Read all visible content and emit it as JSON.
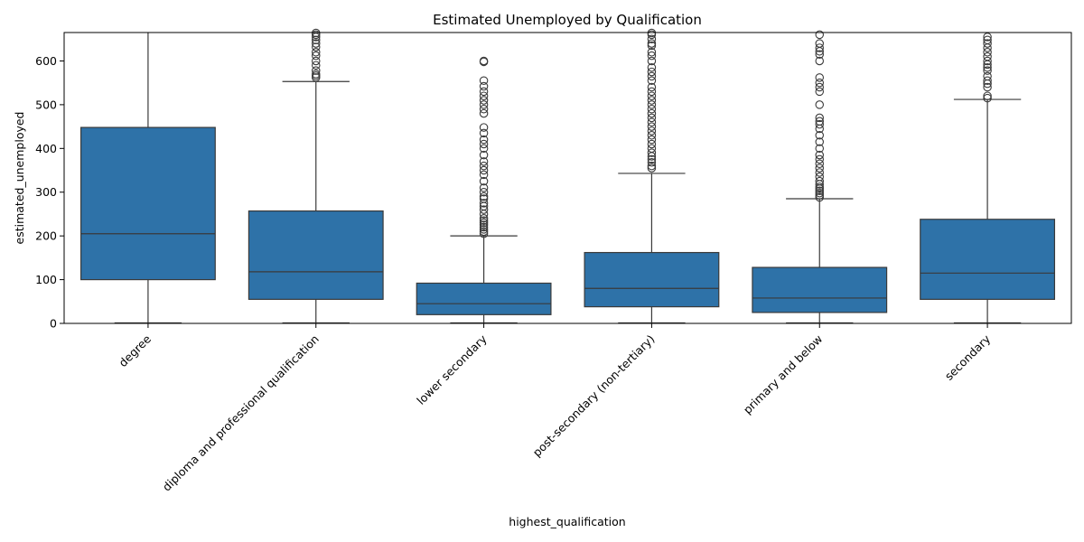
{
  "chart_data": {
    "type": "box",
    "title": "Estimated Unemployed by Qualification",
    "xlabel": "highest_qualification",
    "ylabel": "estimated_unemployed",
    "ylim": [
      0,
      665
    ],
    "yticks": [
      0,
      100,
      200,
      300,
      400,
      500,
      600
    ],
    "grid": false,
    "legend": "none",
    "box_color": "#2e72a8",
    "line_color": "#3a3a3a",
    "categories": [
      "degree",
      "diploma and professional qualification",
      "lower secondary",
      "post-secondary (non-tertiary)",
      "primary and below",
      "secondary"
    ],
    "boxes": [
      {
        "q1": 100,
        "median": 205,
        "q3": 448,
        "whisker_low": 0,
        "whisker_high": 665,
        "outliers": []
      },
      {
        "q1": 55,
        "median": 118,
        "q3": 257,
        "whisker_low": 0,
        "whisker_high": 553,
        "outliers": [
          562,
          566,
          570,
          578,
          590,
          600,
          612,
          620,
          632,
          640,
          648,
          655,
          660,
          664
        ]
      },
      {
        "q1": 20,
        "median": 45,
        "q3": 92,
        "whisker_low": 0,
        "whisker_high": 200,
        "outliers": [
          205,
          210,
          215,
          220,
          225,
          230,
          235,
          240,
          250,
          260,
          268,
          275,
          285,
          290,
          300,
          310,
          325,
          340,
          350,
          360,
          370,
          385,
          400,
          410,
          420,
          435,
          448,
          480,
          490,
          500,
          510,
          520,
          530,
          542,
          555,
          598,
          600
        ]
      },
      {
        "q1": 38,
        "median": 80,
        "q3": 162,
        "whisker_low": 0,
        "whisker_high": 343,
        "outliers": [
          355,
          360,
          368,
          375,
          382,
          390,
          400,
          410,
          420,
          430,
          440,
          450,
          460,
          470,
          480,
          490,
          500,
          510,
          520,
          530,
          540,
          555,
          565,
          575,
          585,
          600,
          612,
          620,
          635,
          640,
          650,
          660,
          664
        ]
      },
      {
        "q1": 25,
        "median": 58,
        "q3": 128,
        "whisker_low": 0,
        "whisker_high": 285,
        "outliers": [
          288,
          293,
          298,
          303,
          308,
          312,
          318,
          325,
          335,
          345,
          355,
          365,
          375,
          385,
          400,
          415,
          430,
          445,
          455,
          462,
          470,
          500,
          530,
          540,
          550,
          562,
          600,
          615,
          622,
          630,
          640,
          660
        ]
      },
      {
        "q1": 55,
        "median": 115,
        "q3": 238,
        "whisker_low": 0,
        "whisker_high": 512,
        "outliers": [
          515,
          520,
          540,
          548,
          555,
          565,
          578,
          585,
          592,
          600,
          610,
          620,
          630,
          640,
          648,
          655
        ]
      }
    ]
  }
}
